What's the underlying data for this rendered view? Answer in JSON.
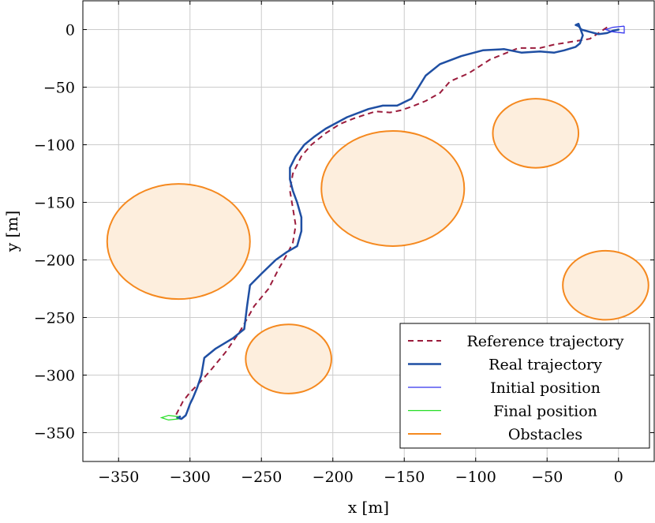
{
  "chart_data": {
    "type": "line",
    "title": "",
    "xlabel": "x [m]",
    "ylabel": "y [m]",
    "xlim": [
      -375,
      25
    ],
    "ylim": [
      -375,
      25
    ],
    "xticks": [
      -350,
      -300,
      -250,
      -200,
      -150,
      -100,
      -50,
      0
    ],
    "yticks": [
      0,
      -50,
      -100,
      -150,
      -200,
      -250,
      -300,
      -350
    ],
    "xtick_labels": [
      "−350",
      "−300",
      "−250",
      "−200",
      "−150",
      "−100",
      "−50",
      "0"
    ],
    "ytick_labels": [
      "0",
      "−50",
      "−100",
      "−150",
      "−200",
      "−250",
      "−300",
      "−350"
    ],
    "grid": true,
    "legend_position": "bottom-right",
    "colors": {
      "reference": "#9b1c3c",
      "real": "#1f4fa3",
      "initial": "#3333ee",
      "final": "#22dd22",
      "obstacle_edge": "#f5891f",
      "obstacle_fill": "#fdeedd"
    },
    "series": [
      {
        "name": "Reference trajectory",
        "style": "dashed",
        "x": [
          -8,
          -20,
          -30,
          -45,
          -55,
          -70,
          -90,
          -105,
          -118,
          -125,
          -135,
          -145,
          -152,
          -160,
          -170,
          -185,
          -195,
          -205,
          -215,
          -222,
          -228,
          -230,
          -228,
          -226,
          -228,
          -232,
          -238,
          -245,
          -255,
          -265,
          -275,
          -285,
          -292,
          -300,
          -305,
          -310
        ],
        "y": [
          2,
          -8,
          -10,
          -13,
          -16,
          -16,
          -26,
          -38,
          -45,
          -55,
          -62,
          -67,
          -70,
          -72,
          -71,
          -77,
          -82,
          -90,
          -100,
          -110,
          -125,
          -140,
          -155,
          -170,
          -185,
          -195,
          -208,
          -225,
          -240,
          -262,
          -280,
          -295,
          -305,
          -315,
          -323,
          -335
        ]
      },
      {
        "name": "Real trajectory",
        "style": "solid",
        "x": [
          0,
          -4,
          -8,
          -14,
          -20,
          -26,
          -28,
          -30,
          -28,
          -25,
          -27,
          -30,
          -38,
          -45,
          -55,
          -68,
          -80,
          -95,
          -110,
          -125,
          -135,
          -140,
          -145,
          -155,
          -165,
          -175,
          -190,
          -205,
          -213,
          -220,
          -226,
          -230,
          -230,
          -228,
          -225,
          -222,
          -222,
          -225,
          -232,
          -240,
          -250,
          -258,
          -260,
          -262,
          -270,
          -282,
          -290,
          -292,
          -295,
          -298,
          -300,
          -302,
          -303,
          -306,
          -309,
          -307
        ],
        "y": [
          0,
          -1,
          -3,
          -4,
          -2,
          0,
          3,
          4,
          5,
          -5,
          -12,
          -15,
          -18,
          -20,
          -19,
          -20,
          -17,
          -18,
          -23,
          -30,
          -40,
          -50,
          -60,
          -66,
          -66,
          -69,
          -76,
          -86,
          -93,
          -100,
          -110,
          -120,
          -130,
          -140,
          -150,
          -163,
          -175,
          -188,
          -193,
          -200,
          -212,
          -222,
          -240,
          -260,
          -268,
          -277,
          -285,
          -300,
          -311,
          -320,
          -325,
          -332,
          -335,
          -338,
          -337,
          -336
        ]
      },
      {
        "name": "Initial position",
        "style": "solid",
        "shape": "wedge",
        "x": [
          4,
          -4,
          -9,
          -4,
          4,
          4
        ],
        "y": [
          3,
          2,
          0,
          -2,
          -3,
          3
        ]
      },
      {
        "name": "Final position",
        "style": "solid",
        "shape": "wedge",
        "x": [
          -308,
          -315,
          -320,
          -315,
          -308
        ],
        "y": [
          -336,
          -335,
          -337,
          -339,
          -338
        ]
      },
      {
        "name": "Obstacles",
        "style": "circle",
        "circles": [
          {
            "cx": -58,
            "cy": -90,
            "r": 30
          },
          {
            "cx": -158,
            "cy": -138,
            "r": 50
          },
          {
            "cx": -308,
            "cy": -184,
            "r": 50
          },
          {
            "cx": -9,
            "cy": -222,
            "r": 30
          },
          {
            "cx": -231,
            "cy": -286,
            "r": 30
          }
        ]
      }
    ]
  }
}
